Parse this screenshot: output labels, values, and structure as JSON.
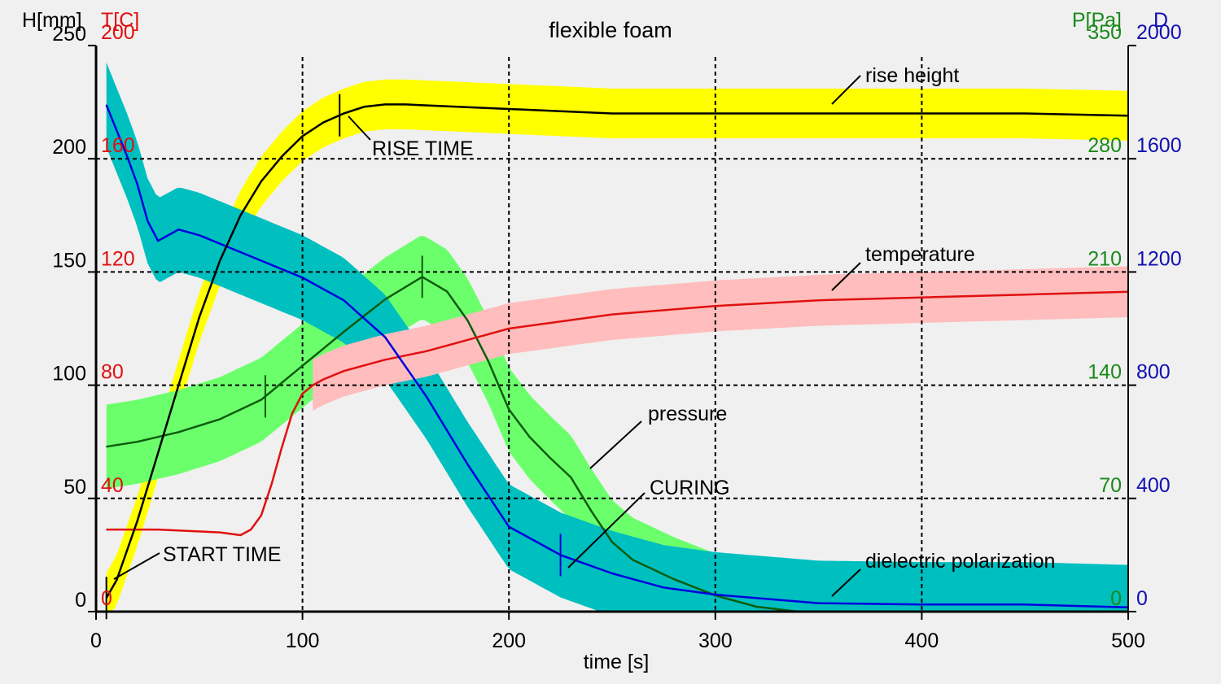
{
  "chart_data": {
    "type": "line",
    "title": "flexible foam",
    "x": {
      "label": "time [s]",
      "range": [
        0,
        500
      ],
      "ticks": [
        "0",
        "100",
        "200",
        "300",
        "400",
        "500"
      ]
    },
    "axes": {
      "H": {
        "label": "H[mm]",
        "range": [
          0,
          250
        ],
        "ticks": [
          "0",
          "50",
          "100",
          "150",
          "200",
          "250"
        ],
        "color": "#000000"
      },
      "T": {
        "label": "T[C]",
        "range": [
          0,
          200
        ],
        "ticks": [
          "0",
          "40",
          "80",
          "120",
          "160",
          "200"
        ],
        "color": "#e01010"
      },
      "P": {
        "label": "P[Pa]",
        "range": [
          0,
          350
        ],
        "ticks": [
          "0",
          "70",
          "140",
          "210",
          "280",
          "350"
        ],
        "color": "#1a8a1a"
      },
      "D": {
        "label": "D",
        "range": [
          0,
          2000
        ],
        "ticks": [
          "0",
          "400",
          "800",
          "1200",
          "1600",
          "2000"
        ],
        "color": "#1010b0"
      }
    },
    "grid": true,
    "series": [
      {
        "name": "rise height",
        "axis": "H",
        "color": "#000000",
        "band_color": "#ffff00",
        "band_halfwidth": 11,
        "x": [
          5,
          10,
          20,
          30,
          40,
          50,
          60,
          70,
          80,
          90,
          100,
          110,
          120,
          130,
          140,
          150,
          175,
          200,
          225,
          250,
          300,
          350,
          400,
          450,
          500
        ],
        "y": [
          6,
          14,
          40,
          70,
          100,
          130,
          155,
          175,
          190,
          201,
          210,
          216,
          220,
          223,
          224,
          224,
          223,
          222,
          221,
          220,
          220,
          220,
          220,
          220,
          219
        ]
      },
      {
        "name": "temperature",
        "axis": "T",
        "color": "#e01010",
        "band_color": "#ffbdbd",
        "band_halfwidth": 9,
        "band_start": 105,
        "x": [
          5,
          30,
          60,
          70,
          75,
          80,
          85,
          90,
          95,
          100,
          105,
          110,
          120,
          140,
          160,
          180,
          200,
          250,
          300,
          350,
          400,
          450,
          500
        ],
        "y": [
          29,
          29,
          28,
          27,
          29,
          34,
          45,
          58,
          70,
          77,
          80,
          82,
          85,
          89,
          92,
          96,
          100,
          105,
          108,
          110,
          111,
          112,
          113
        ]
      },
      {
        "name": "pressure",
        "axis": "P",
        "color": "#0d5d0d",
        "band_color": "#6cff6c",
        "band_halfwidth": 26,
        "x": [
          5,
          20,
          40,
          60,
          80,
          100,
          120,
          140,
          158,
          170,
          180,
          190,
          200,
          210,
          220,
          230,
          240,
          250,
          260,
          280,
          300,
          320,
          340,
          360,
          400,
          450,
          500
        ],
        "y": [
          102,
          105,
          111,
          119,
          131,
          152,
          173,
          193,
          207,
          198,
          180,
          155,
          125,
          108,
          95,
          83,
          62,
          43,
          32,
          20,
          10,
          3,
          0,
          0,
          0,
          0,
          0
        ]
      },
      {
        "name": "dielectric polarization",
        "axis": "D",
        "color": "#0000dd",
        "band_color": "#00bfbf",
        "band_halfwidth": 150,
        "x": [
          5,
          15,
          20,
          25,
          30,
          35,
          40,
          50,
          60,
          80,
          100,
          120,
          140,
          160,
          180,
          200,
          225,
          250,
          275,
          300,
          350,
          400,
          450,
          500
        ],
        "y": [
          1790,
          1610,
          1510,
          1380,
          1310,
          1330,
          1350,
          1330,
          1300,
          1240,
          1180,
          1100,
          970,
          760,
          520,
          300,
          200,
          135,
          85,
          60,
          30,
          25,
          25,
          15
        ]
      }
    ],
    "event_marks": [
      {
        "name": "start",
        "series": "rise height",
        "x": 5
      },
      {
        "name": "rise",
        "series": "rise height",
        "x": 118
      },
      {
        "name": "pressure-peak",
        "series": "pressure",
        "x": 158
      },
      {
        "name": "pressure-early",
        "series": "pressure",
        "x": 82
      },
      {
        "name": "curing",
        "series": "dielectric polarization",
        "x": 225
      }
    ],
    "annotations": [
      "rise height",
      "RISE TIME",
      "temperature",
      "pressure",
      "CURING",
      "START TIME",
      "dielectric polarization"
    ]
  }
}
